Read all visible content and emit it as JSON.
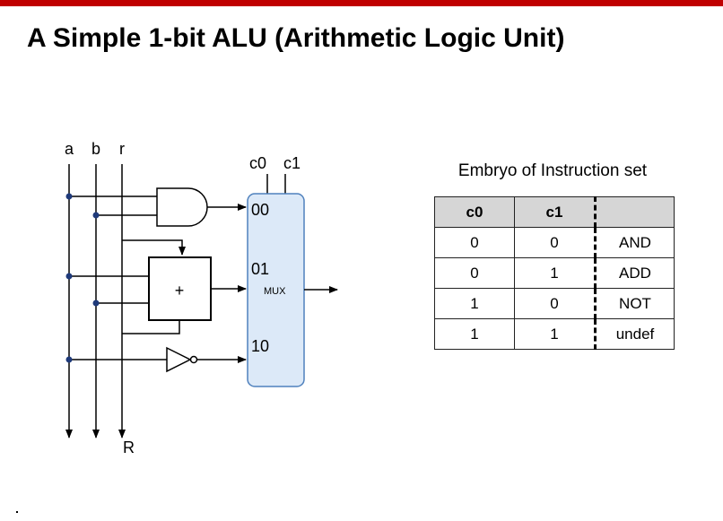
{
  "slide": {
    "title": "A Simple 1-bit ALU (Arithmetic Logic Unit)"
  },
  "circuit": {
    "inputs": {
      "a": "a",
      "b": "b",
      "r": "r"
    },
    "output_label": "R",
    "controls": {
      "c0": "c0",
      "c1": "c1"
    },
    "mux": {
      "label": "MUX",
      "port_00": "00",
      "port_01": "01",
      "port_10": "10"
    },
    "adder_label": "+",
    "mux_fill": "#dce9f8",
    "mux_stroke": "#4f81bd",
    "node_color": "#1f3a7a"
  },
  "instruction_table": {
    "caption": "Embryo of Instruction set",
    "headers": {
      "c0": "c0",
      "c1": "c1",
      "op": ""
    },
    "rows": [
      {
        "c0": "0",
        "c1": "0",
        "op": "AND"
      },
      {
        "c0": "0",
        "c1": "1",
        "op": "ADD"
      },
      {
        "c0": "1",
        "c1": "0",
        "op": "NOT"
      },
      {
        "c0": "1",
        "c1": "1",
        "op": "undef"
      }
    ]
  }
}
